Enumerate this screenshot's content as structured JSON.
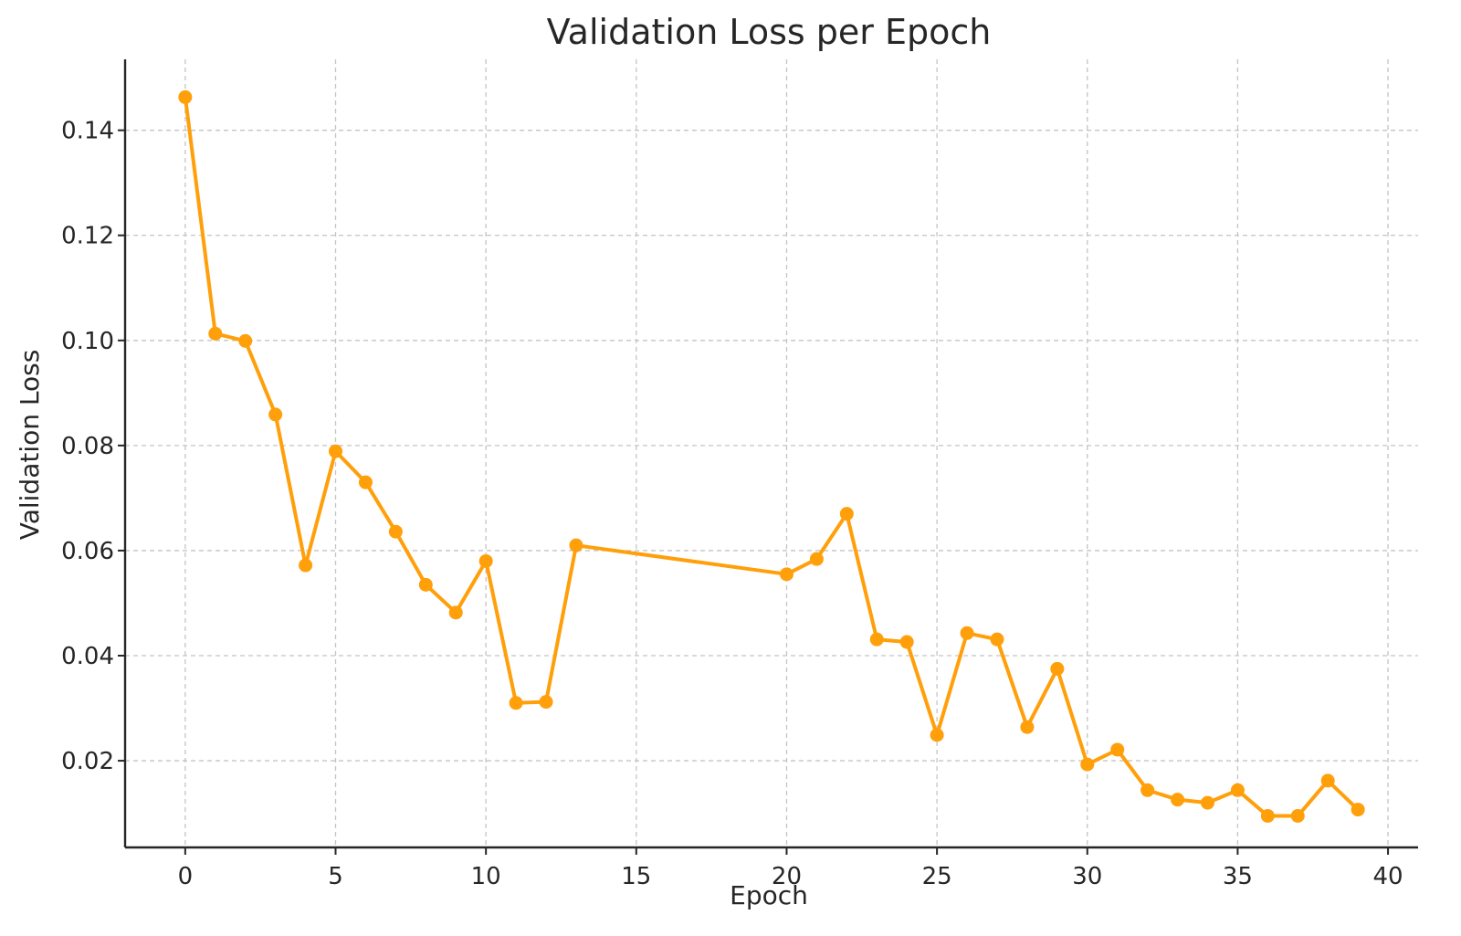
{
  "chart_data": {
    "type": "line",
    "title": "Validation Loss per Epoch",
    "xlabel": "Epoch",
    "ylabel": "Validation Loss",
    "xlim": [
      -2,
      41
    ],
    "ylim": [
      0.0035,
      0.1535
    ],
    "xticks": [
      0,
      5,
      10,
      15,
      20,
      25,
      30,
      35,
      40
    ],
    "yticks": [
      0.02,
      0.04,
      0.06,
      0.08,
      0.1,
      0.12,
      0.14
    ],
    "ytick_labels": [
      "0.02",
      "0.04",
      "0.06",
      "0.08",
      "0.10",
      "0.12",
      "0.14"
    ],
    "grid": true,
    "legend": "none",
    "series": [
      {
        "color": "#ff9f0a",
        "x": [
          0,
          1,
          2,
          3,
          4,
          5,
          6,
          7,
          8,
          9,
          10,
          11,
          12,
          13,
          20,
          21,
          22,
          23,
          24,
          25,
          26,
          27,
          28,
          29,
          30,
          31,
          32,
          33,
          34,
          35,
          36,
          37,
          38,
          39
        ],
        "y": [
          0.1463,
          0.1013,
          0.0999,
          0.0859,
          0.0572,
          0.0789,
          0.073,
          0.0636,
          0.0535,
          0.0482,
          0.058,
          0.031,
          0.0312,
          0.061,
          0.0555,
          0.0584,
          0.067,
          0.0431,
          0.0426,
          0.0249,
          0.0443,
          0.0431,
          0.0264,
          0.0375,
          0.0193,
          0.0221,
          0.0144,
          0.0126,
          0.012,
          0.0144,
          0.0095,
          0.0095,
          0.0162,
          0.0107
        ]
      }
    ]
  }
}
